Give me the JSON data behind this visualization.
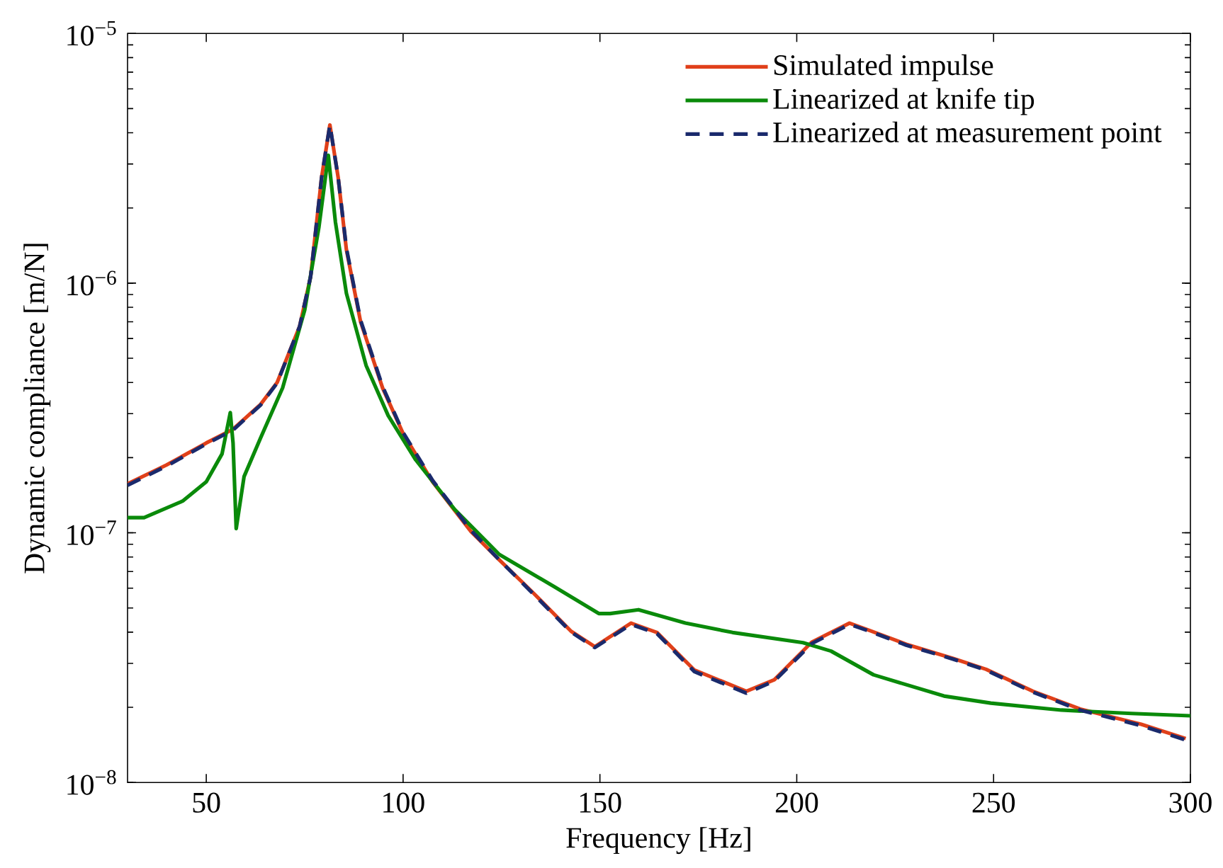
{
  "chart_data": {
    "type": "line",
    "xlabel": "Frequency [Hz]",
    "ylabel": "Dynamic compliance [m/N]",
    "log": "y",
    "legend": "top right",
    "marker": "none",
    "xlim": [
      30,
      300
    ],
    "xticks": [
      50,
      100,
      150,
      200,
      250,
      300
    ],
    "ylim": [
      1e-08,
      1e-05
    ],
    "yticks": [
      {
        "value": 1e-08,
        "label": "10$^{−8}$"
      },
      {
        "value": 1e-07,
        "label": "10$^{−7}$"
      },
      {
        "value": 1e-06,
        "label": "10$^{−6}$"
      },
      {
        "value": 1e-05,
        "label": "10$^{−5}$"
      }
    ],
    "series": [
      {
        "name": "Simulated impulse",
        "color": "#e0401a",
        "line_style": "solid",
        "x": [
          30,
          39.9,
          50,
          56.8,
          63.8,
          68,
          73.7,
          76.5,
          79.3,
          81.4,
          83.5,
          85.6,
          89.2,
          94.8,
          100,
          107.5,
          117.3,
          124.4,
          132.8,
          142.7,
          148.7,
          157.9,
          164.5,
          174,
          187.2,
          194.3,
          203.8,
          213.4,
          218.2,
          227.8,
          239.7,
          248.1,
          260,
          272,
          287.5,
          298.8
        ],
        "values": [
          1.57e-07,
          1.87e-07,
          2.29e-07,
          2.6e-07,
          3.27e-07,
          4e-07,
          6.7e-07,
          1.06e-06,
          2.65e-06,
          4.3e-06,
          2.65e-06,
          1.36e-06,
          7e-07,
          3.8e-07,
          2.5e-07,
          1.6e-07,
          1.01e-07,
          7.8e-08,
          5.8e-08,
          4.03e-08,
          3.5e-08,
          4.35e-08,
          3.99e-08,
          2.82e-08,
          2.32e-08,
          2.58e-08,
          3.65e-08,
          4.35e-08,
          4.08e-08,
          3.58e-08,
          3.14e-08,
          2.84e-08,
          2.32e-08,
          1.97e-08,
          1.71e-08,
          1.5e-08
        ]
      },
      {
        "name": "Linearized at knife tip",
        "color": "#0a8a0a",
        "line_style": "solid",
        "x": [
          30,
          34.2,
          44,
          50,
          54,
          56.1,
          56.8,
          57.6,
          59.6,
          63.8,
          69.4,
          75,
          78.6,
          81,
          82.8,
          85.6,
          90.6,
          96.2,
          103.2,
          113.1,
          124.4,
          138.5,
          149.7,
          152.6,
          159.8,
          171.7,
          183.7,
          201.6,
          208.7,
          219.5,
          237.4,
          249.3,
          267.2,
          285.1,
          300
        ],
        "values": [
          1.15e-07,
          1.15e-07,
          1.34e-07,
          1.6e-07,
          2.07e-07,
          3.03e-07,
          2.29e-07,
          1.04e-07,
          1.68e-07,
          2.4e-07,
          3.81e-07,
          7.8e-07,
          1.67e-06,
          3.25e-06,
          1.76e-06,
          9.1e-07,
          4.68e-07,
          2.95e-07,
          1.96e-07,
          1.24e-07,
          8.2e-08,
          6.07e-08,
          4.75e-08,
          4.75e-08,
          4.92e-08,
          4.35e-08,
          3.99e-08,
          3.63e-08,
          3.36e-08,
          2.7e-08,
          2.22e-08,
          2.08e-08,
          1.95e-08,
          1.89e-08,
          1.85e-08
        ]
      },
      {
        "name": "Linearized at measurement point",
        "color": "#1a2a6c",
        "line_style": "dashed",
        "x": [
          30,
          39.9,
          50,
          56.8,
          63.8,
          68,
          73.7,
          76.5,
          79.3,
          81.4,
          83.5,
          85.6,
          89.2,
          94.8,
          100,
          107.5,
          117.3,
          124.4,
          132.8,
          142.7,
          148.7,
          157.9,
          164.5,
          174,
          187.2,
          194.3,
          203.8,
          213.4,
          218.2,
          227.8,
          239.7,
          248.1,
          260,
          272,
          287.5,
          298.8
        ],
        "values": [
          1.55e-07,
          1.85e-07,
          2.27e-07,
          2.58e-07,
          3.25e-07,
          3.98e-07,
          6.7e-07,
          1.06e-06,
          2.65e-06,
          4.3e-06,
          2.65e-06,
          1.38e-06,
          7.1e-07,
          3.85e-07,
          2.52e-07,
          1.62e-07,
          1.02e-07,
          7.8e-08,
          5.75e-08,
          4e-08,
          3.47e-08,
          4.3e-08,
          3.95e-08,
          2.78e-08,
          2.28e-08,
          2.55e-08,
          3.6e-08,
          4.3e-08,
          4.05e-08,
          3.55e-08,
          3.12e-08,
          2.82e-08,
          2.3e-08,
          1.95e-08,
          1.69e-08,
          1.48e-08
        ]
      }
    ]
  }
}
